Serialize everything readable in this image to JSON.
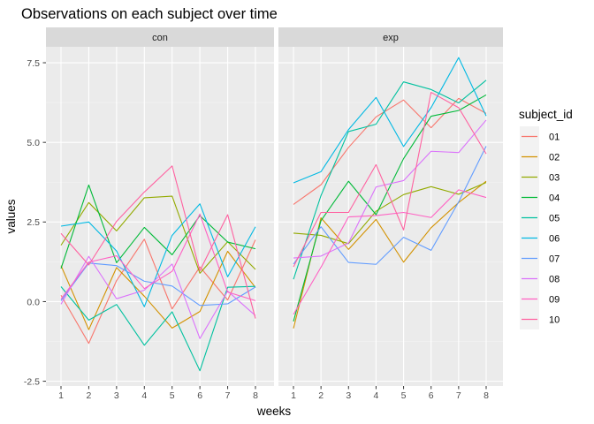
{
  "chart_data": {
    "type": "line",
    "title": "Observations on each subject over time",
    "xlabel": "weeks",
    "ylabel": "values",
    "x": [
      1,
      2,
      3,
      4,
      5,
      6,
      7,
      8
    ],
    "ylim": [
      -2.65,
      8.0
    ],
    "yticks": [
      -2.5,
      0.0,
      2.5,
      5.0,
      7.5
    ],
    "ytick_labels": [
      "-2.5",
      "0.0",
      "2.5",
      "5.0",
      "7.5"
    ],
    "xtick_labels": [
      "1",
      "2",
      "3",
      "4",
      "5",
      "6",
      "7",
      "8"
    ],
    "grid": true,
    "legend": {
      "title": "subject_id",
      "position": "right",
      "labels": [
        "01",
        "02",
        "03",
        "04",
        "05",
        "06",
        "07",
        "08",
        "09",
        "10"
      ]
    },
    "colors": [
      "#F8766D",
      "#D39200",
      "#93AA00",
      "#00BA38",
      "#00C19F",
      "#00B9E3",
      "#619CFF",
      "#DB72FB",
      "#FF61C3",
      "#FF61A0"
    ],
    "panels": [
      {
        "name": "con",
        "series": [
          {
            "name": "01",
            "values": [
              0.2,
              -1.31,
              0.66,
              1.96,
              -0.23,
              1.09,
              0.05,
              1.94
            ]
          },
          {
            "name": "02",
            "values": [
              1.13,
              -0.88,
              1.07,
              0.17,
              -0.83,
              -0.31,
              1.58,
              0.44
            ]
          },
          {
            "name": "03",
            "values": [
              1.77,
              3.11,
              2.22,
              3.26,
              3.31,
              0.89,
              1.88,
              1.01
            ]
          },
          {
            "name": "04",
            "values": [
              1.04,
              3.66,
              1.22,
              2.33,
              1.47,
              2.7,
              1.87,
              1.66
            ]
          },
          {
            "name": "05",
            "values": [
              0.47,
              -0.58,
              -0.09,
              -1.37,
              -0.32,
              -2.17,
              0.45,
              0.48
            ]
          },
          {
            "name": "06",
            "values": [
              2.37,
              2.5,
              1.59,
              -0.16,
              2.08,
              3.07,
              0.78,
              2.35
            ]
          },
          {
            "name": "07",
            "values": [
              0.03,
              1.21,
              1.13,
              0.64,
              0.49,
              -0.12,
              -0.07,
              0.46
            ]
          },
          {
            "name": "08",
            "values": [
              -0.08,
              1.42,
              0.09,
              0.36,
              1.18,
              -1.16,
              0.33,
              -0.44
            ]
          },
          {
            "name": "09",
            "values": [
              0.08,
              1.24,
              1.44,
              0.41,
              0.95,
              2.75,
              0.3,
              0.03
            ]
          },
          {
            "name": "10",
            "values": [
              2.14,
              1.15,
              2.52,
              3.44,
              4.26,
              0.97,
              2.73,
              -0.53
            ]
          }
        ]
      },
      {
        "name": "exp",
        "series": [
          {
            "name": "01",
            "values": [
              3.05,
              3.67,
              4.84,
              5.8,
              6.33,
              5.46,
              6.38,
              5.91
            ]
          },
          {
            "name": "02",
            "values": [
              -0.84,
              2.63,
              1.64,
              2.58,
              1.24,
              2.32,
              3.11,
              3.78
            ]
          },
          {
            "name": "03",
            "values": [
              2.15,
              2.08,
              1.82,
              2.84,
              3.36,
              3.61,
              3.37,
              3.74
            ]
          },
          {
            "name": "04",
            "values": [
              -0.62,
              2.54,
              3.78,
              2.73,
              4.49,
              5.82,
              6.0,
              6.49
            ]
          },
          {
            "name": "05",
            "values": [
              0.7,
              3.33,
              5.34,
              5.57,
              6.9,
              6.66,
              6.24,
              6.95
            ]
          },
          {
            "name": "06",
            "values": [
              3.73,
              4.08,
              5.4,
              6.41,
              4.87,
              6.09,
              7.66,
              5.83
            ]
          },
          {
            "name": "07",
            "values": [
              1.18,
              2.35,
              1.23,
              1.17,
              2.02,
              1.61,
              3.13,
              4.88
            ]
          },
          {
            "name": "08",
            "values": [
              1.37,
              1.43,
              1.84,
              3.6,
              3.8,
              4.72,
              4.68,
              5.7
            ]
          },
          {
            "name": "09",
            "values": [
              -0.4,
              1.08,
              2.66,
              2.7,
              2.8,
              2.64,
              3.51,
              3.27
            ]
          },
          {
            "name": "10",
            "values": [
              1.09,
              2.8,
              2.8,
              4.3,
              2.25,
              6.57,
              6.09,
              4.64
            ]
          }
        ]
      }
    ]
  }
}
